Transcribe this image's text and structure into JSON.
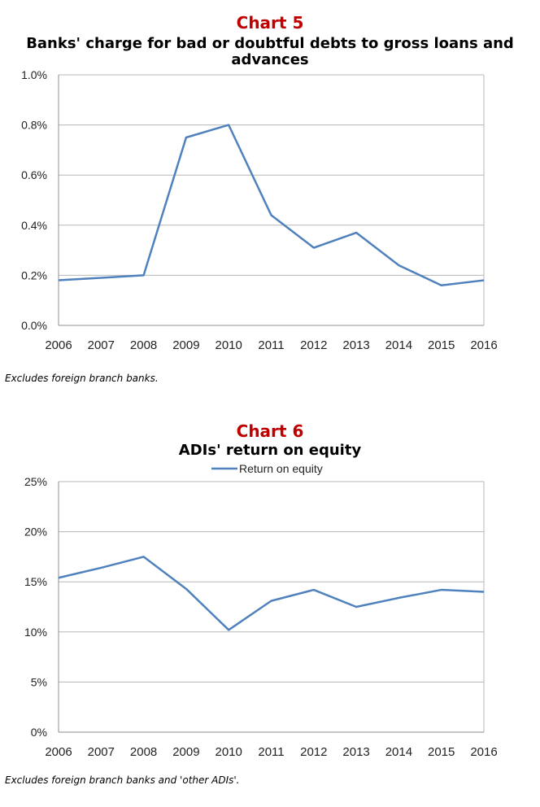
{
  "charts": [
    {
      "number": "Chart 5",
      "title": "Banks' charge for bad or doubtful debts to gross loans and advances",
      "note": "Excludes foreign branch banks."
    },
    {
      "number": "Chart 6",
      "title": "ADIs' return on equity",
      "note": "Excludes foreign branch banks and 'other ADIs'."
    }
  ],
  "chart_data": [
    {
      "type": "line",
      "title": "Banks' charge for bad or doubtful debts to gross loans and advances",
      "x": [
        "2006",
        "2007",
        "2008",
        "2009",
        "2010",
        "2011",
        "2012",
        "2013",
        "2014",
        "2015",
        "2016"
      ],
      "series": [
        {
          "values": [
            0.18,
            0.19,
            0.2,
            0.75,
            0.8,
            0.44,
            0.31,
            0.37,
            0.24,
            0.16,
            0.18
          ],
          "color": "#4f81bd"
        }
      ],
      "yticks": [
        "0.0%",
        "0.2%",
        "0.4%",
        "0.6%",
        "0.8%",
        "1.0%"
      ],
      "ylim": [
        0,
        1.0
      ],
      "grid": true,
      "legend": "none"
    },
    {
      "type": "line",
      "title": "ADIs' return on equity",
      "x": [
        "2006",
        "2007",
        "2008",
        "2009",
        "2010",
        "2011",
        "2012",
        "2013",
        "2014",
        "2015",
        "2016"
      ],
      "series": [
        {
          "name": "Return on equity",
          "values": [
            15.4,
            16.4,
            17.5,
            14.3,
            10.2,
            13.1,
            14.2,
            12.5,
            13.4,
            14.2,
            14.0
          ],
          "color": "#4f81bd"
        }
      ],
      "yticks": [
        "0%",
        "5%",
        "10%",
        "15%",
        "20%",
        "25%"
      ],
      "ylim": [
        0,
        25
      ],
      "grid": true,
      "legend": "top-center"
    }
  ]
}
